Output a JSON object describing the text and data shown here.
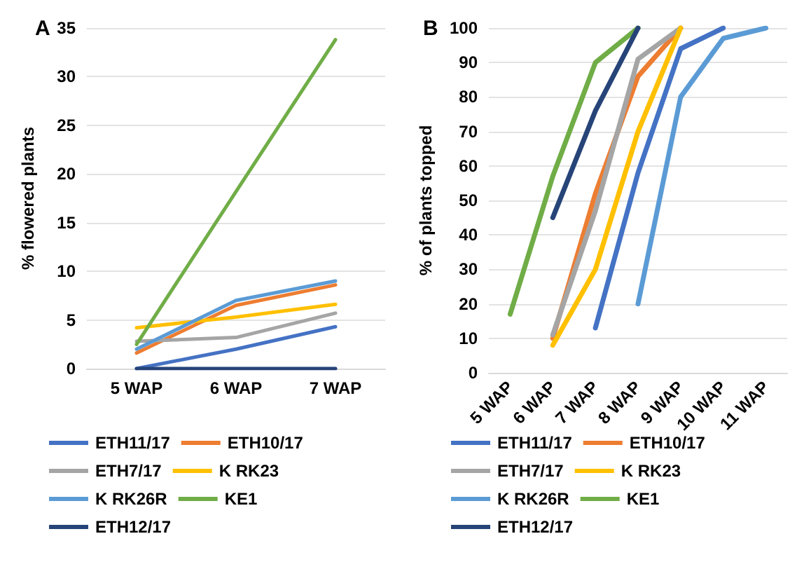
{
  "chart_data": [
    {
      "type": "line",
      "title": "A",
      "ylabel": "% flowered plants",
      "categories": [
        "5 WAP",
        "6 WAP",
        "7 WAP"
      ],
      "ylim": [
        0,
        35
      ],
      "yticks": [
        0,
        5,
        10,
        15,
        20,
        25,
        30,
        35
      ],
      "grid": "y",
      "legend": "bottom",
      "marker": "none",
      "line_style": "solid",
      "series": [
        {
          "name": "ETH11/17",
          "color": "#4472c4",
          "values": [
            0,
            2,
            4.3
          ]
        },
        {
          "name": "ETH10/17",
          "color": "#ed7d31",
          "values": [
            1.6,
            6.5,
            8.6
          ]
        },
        {
          "name": "ETH7/17",
          "color": "#a5a5a5",
          "values": [
            2.8,
            3.2,
            5.7
          ]
        },
        {
          "name": "K RK23",
          "color": "#ffc000",
          "values": [
            4.2,
            5.3,
            6.6
          ]
        },
        {
          "name": "K RK26R",
          "color": "#5b9bd5",
          "values": [
            2,
            7,
            9
          ]
        },
        {
          "name": "KE1",
          "color": "#70ad47",
          "values": [
            2.5,
            18.2,
            33.8
          ]
        },
        {
          "name": "ETH12/17",
          "color": "#264478",
          "values": [
            0,
            0,
            0
          ]
        }
      ]
    },
    {
      "type": "line",
      "title": "B",
      "ylabel": "% of plants topped",
      "categories": [
        "5 WAP",
        "6 WAP",
        "7 WAP",
        "8 WAP",
        "9 WAP",
        "10 WAP",
        "11 WAP"
      ],
      "ylim": [
        0,
        100
      ],
      "yticks": [
        0,
        10,
        20,
        30,
        40,
        50,
        60,
        70,
        80,
        90,
        100
      ],
      "grid": "y",
      "legend": "bottom",
      "marker": "none",
      "line_style": "solid",
      "series": [
        {
          "name": "ETH11/17",
          "color": "#4472c4",
          "values": [
            null,
            null,
            13,
            58,
            94,
            100,
            null
          ]
        },
        {
          "name": "ETH10/17",
          "color": "#ed7d31",
          "values": [
            null,
            10,
            52,
            86,
            100,
            null,
            null
          ]
        },
        {
          "name": "ETH7/17",
          "color": "#a5a5a5",
          "values": [
            null,
            11,
            47,
            91,
            100,
            null,
            null
          ]
        },
        {
          "name": "K RK23",
          "color": "#ffc000",
          "values": [
            null,
            8,
            30,
            70,
            100,
            null,
            null
          ]
        },
        {
          "name": "K RK26R",
          "color": "#5b9bd5",
          "values": [
            null,
            null,
            null,
            20,
            80,
            97,
            100
          ]
        },
        {
          "name": "KE1",
          "color": "#70ad47",
          "values": [
            17,
            57,
            90,
            100,
            null,
            null,
            null
          ]
        },
        {
          "name": "ETH12/17",
          "color": "#264478",
          "values": [
            null,
            45,
            76,
            100,
            null,
            null,
            null
          ]
        }
      ]
    }
  ]
}
